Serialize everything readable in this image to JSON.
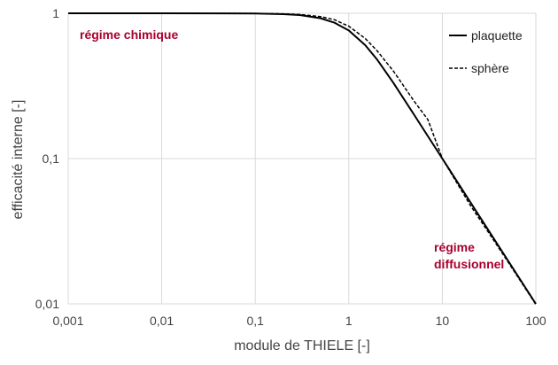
{
  "chart_data": {
    "type": "line",
    "xscale": "log",
    "yscale": "log",
    "xlim": [
      0.001,
      100
    ],
    "ylim": [
      0.01,
      1
    ],
    "xlabel": "module de THIELE [-]",
    "ylabel": "efficacité interne [-]",
    "x_ticks": [
      "0,001",
      "0,01",
      "0,1",
      "1",
      "10",
      "100"
    ],
    "y_ticks": [
      "0,01",
      "0,1",
      "1"
    ],
    "grid": true,
    "legend_position": "top-right",
    "series": [
      {
        "name": "plaquette",
        "style": "solid",
        "x": [
          0.001,
          0.01,
          0.1,
          0.2,
          0.3,
          0.5,
          0.7,
          1,
          1.5,
          2,
          3,
          5,
          7,
          10,
          20,
          30,
          50,
          100
        ],
        "y": [
          1,
          1,
          0.9967,
          0.9869,
          0.9717,
          0.9242,
          0.8625,
          0.7616,
          0.6034,
          0.482,
          0.3317,
          0.2,
          0.1428,
          0.1,
          0.05,
          0.0333,
          0.02,
          0.01
        ]
      },
      {
        "name": "sphère",
        "style": "dashed",
        "x": [
          0.001,
          0.01,
          0.1,
          0.2,
          0.3,
          0.5,
          0.7,
          1,
          1.5,
          2,
          3,
          5,
          7,
          10,
          20,
          30,
          50,
          100
        ],
        "y": [
          1,
          1,
          0.9978,
          0.9912,
          0.9804,
          0.9483,
          0.9038,
          0.8146,
          0.6706,
          0.5536,
          0.4,
          0.2481,
          0.1856,
          0.1,
          0.0475,
          0.0322,
          0.0196,
          0.0099
        ]
      }
    ],
    "annotations": [
      {
        "text": "régime chimique"
      },
      {
        "text": "régime"
      },
      {
        "text": "diffusionnel"
      }
    ],
    "annotation_color": "#a8002e"
  }
}
